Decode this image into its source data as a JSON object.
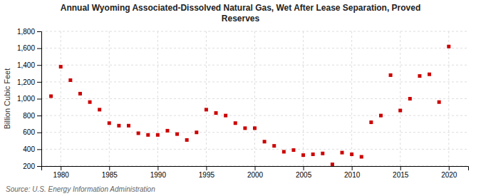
{
  "chart_data": {
    "type": "scatter",
    "title": "Annual Wyoming Associated-Dissolved Natural Gas, Wet After Lease Separation, Proved\nReserves",
    "y_label": "Billion Cubic Feet",
    "source": "Source: U.S. Energy Information Administration",
    "color": "#cc0000",
    "marker": "square",
    "x": [
      1979,
      1980,
      1981,
      1982,
      1983,
      1984,
      1985,
      1986,
      1987,
      1988,
      1989,
      1990,
      1991,
      1992,
      1993,
      1994,
      1995,
      1996,
      1997,
      1998,
      1999,
      2000,
      2001,
      2002,
      2003,
      2004,
      2005,
      2006,
      2007,
      2008,
      2009,
      2010,
      2011,
      2012,
      2013,
      2014,
      2015,
      2016,
      2017,
      2018,
      2019,
      2020
    ],
    "values": [
      1030,
      1380,
      1220,
      1060,
      960,
      870,
      710,
      680,
      680,
      590,
      570,
      570,
      620,
      580,
      510,
      600,
      870,
      830,
      800,
      710,
      650,
      650,
      490,
      440,
      370,
      390,
      330,
      340,
      350,
      220,
      360,
      340,
      310,
      720,
      800,
      1280,
      860,
      1000,
      1270,
      1290,
      960,
      1620
    ],
    "xlim": [
      1978,
      2022
    ],
    "ylim": [
      200,
      1800
    ],
    "xticks": [
      1980,
      1985,
      1990,
      1995,
      2000,
      2005,
      2010,
      2015,
      2020
    ],
    "yticks": [
      200,
      400,
      600,
      800,
      {
        "value": 1000,
        "label": "1,000"
      },
      {
        "value": 1200,
        "label": "1,200"
      },
      {
        "value": 1400,
        "label": "1,400"
      },
      {
        "value": 1600,
        "label": "1,600"
      },
      {
        "value": 1800,
        "label": "1,800"
      }
    ],
    "grid": true
  }
}
